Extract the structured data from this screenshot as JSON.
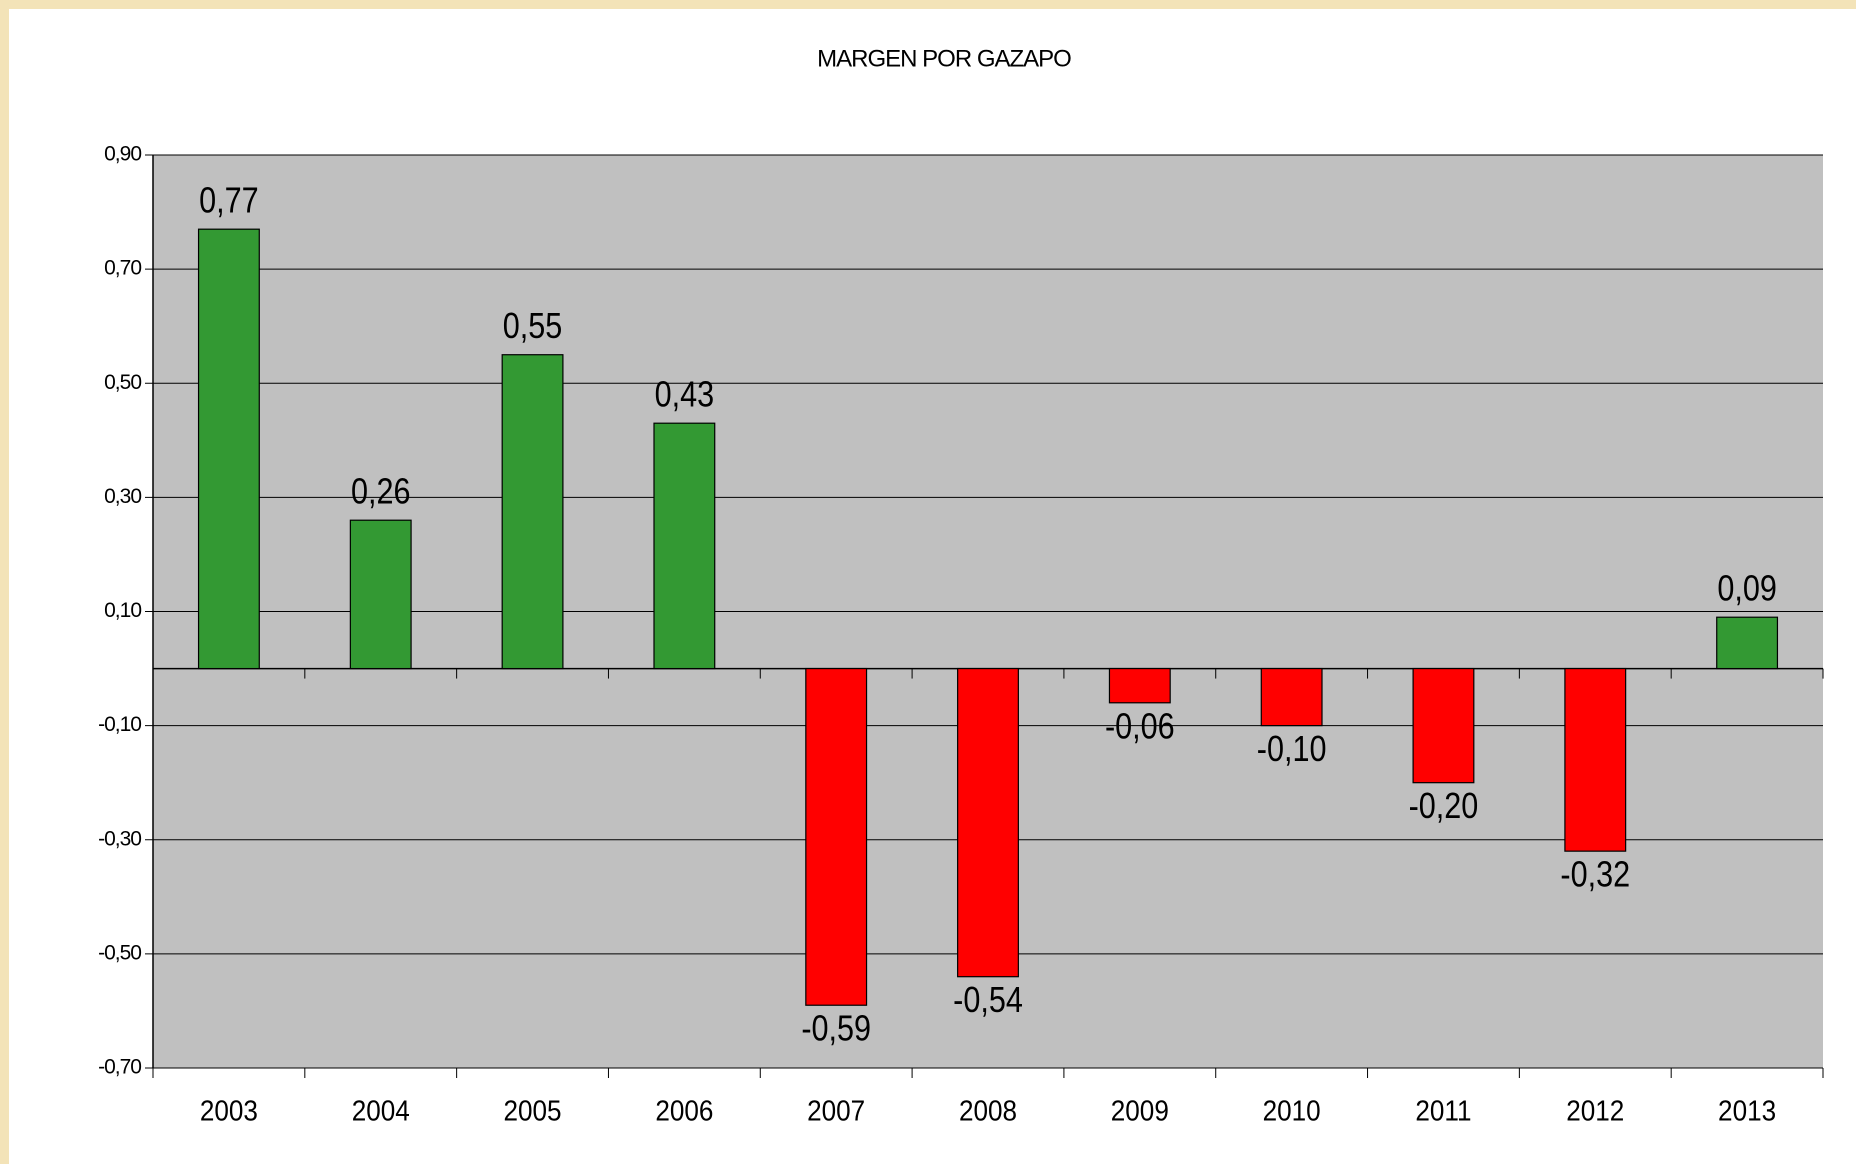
{
  "chart_data": {
    "type": "bar",
    "title": "MARGEN POR GAZAPO",
    "categories": [
      "2003",
      "2004",
      "2005",
      "2006",
      "2007",
      "2008",
      "2009",
      "2010",
      "2011",
      "2012",
      "2013"
    ],
    "values": [
      0.77,
      0.26,
      0.55,
      0.43,
      -0.59,
      -0.54,
      -0.06,
      -0.1,
      -0.2,
      -0.32,
      0.09
    ],
    "value_labels": [
      "0,77",
      "0,26",
      "0,55",
      "0,43",
      "-0,59",
      "-0,54",
      "-0,06",
      "-0,10",
      "-0,20",
      "-0,32",
      "0,09"
    ],
    "color": "#339933",
    "negative_color": "#ff0000",
    "ylim": [
      -0.7,
      0.9
    ],
    "yticks": [
      {
        "value": -0.7,
        "label": "-0,70"
      },
      {
        "value": -0.5,
        "label": "-0,50"
      },
      {
        "value": -0.3,
        "label": "-0,30"
      },
      {
        "value": -0.1,
        "label": "-0,10"
      },
      {
        "value": 0.1,
        "label": "0,10"
      },
      {
        "value": 0.3,
        "label": "0,30"
      },
      {
        "value": 0.5,
        "label": "0,50"
      },
      {
        "value": 0.7,
        "label": "0,70"
      },
      {
        "value": 0.9,
        "label": "0,90"
      }
    ],
    "grid": true
  }
}
